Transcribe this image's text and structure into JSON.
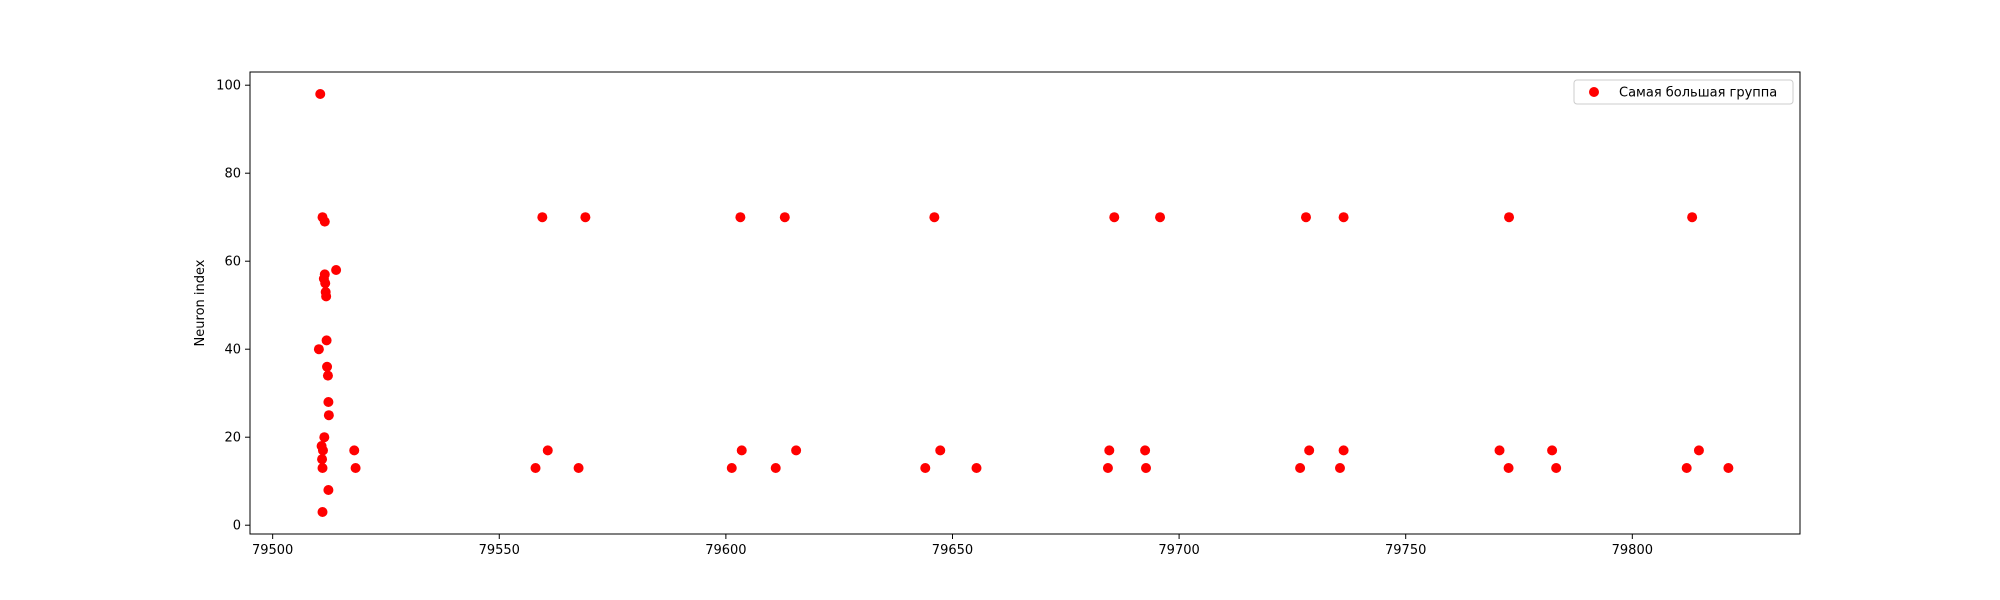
{
  "chart_data": {
    "type": "scatter",
    "title": "",
    "xlabel": "",
    "ylabel": "Neuron index",
    "xlim": [
      79495,
      79837
    ],
    "ylim": [
      -2,
      103
    ],
    "xticks": [
      79500,
      79550,
      79600,
      79650,
      79700,
      79750,
      79800
    ],
    "yticks": [
      0,
      20,
      40,
      60,
      80,
      100
    ],
    "grid": false,
    "legend_position": "top-right",
    "series": [
      {
        "name": "Самая большая группа",
        "color": "#ff0000",
        "points": [
          [
            79510.5,
            98
          ],
          [
            79511.0,
            70
          ],
          [
            79511.5,
            69
          ],
          [
            79510.2,
            40
          ],
          [
            79511.5,
            57
          ],
          [
            79511.3,
            56
          ],
          [
            79511.6,
            55
          ],
          [
            79511.7,
            53
          ],
          [
            79511.8,
            52
          ],
          [
            79514.0,
            58
          ],
          [
            79511.9,
            42
          ],
          [
            79512.0,
            36
          ],
          [
            79512.2,
            34
          ],
          [
            79512.3,
            28
          ],
          [
            79512.4,
            25
          ],
          [
            79511.4,
            20
          ],
          [
            79510.8,
            18
          ],
          [
            79511.1,
            17
          ],
          [
            79510.9,
            15
          ],
          [
            79511.0,
            13
          ],
          [
            79512.3,
            8
          ],
          [
            79511.0,
            3
          ],
          [
            79518.0,
            17
          ],
          [
            79518.3,
            13
          ],
          [
            79559.5,
            70
          ],
          [
            79569.0,
            70
          ],
          [
            79560.7,
            17
          ],
          [
            79558.0,
            13
          ],
          [
            79567.5,
            13
          ],
          [
            79603.2,
            70
          ],
          [
            79613.0,
            70
          ],
          [
            79603.5,
            17
          ],
          [
            79615.5,
            17
          ],
          [
            79601.3,
            13
          ],
          [
            79611.0,
            13
          ],
          [
            79646.0,
            70
          ],
          [
            79647.3,
            17
          ],
          [
            79644.0,
            13
          ],
          [
            79655.3,
            13
          ],
          [
            79685.7,
            70
          ],
          [
            79695.8,
            70
          ],
          [
            79684.6,
            17
          ],
          [
            79692.5,
            17
          ],
          [
            79684.3,
            13
          ],
          [
            79692.7,
            13
          ],
          [
            79728.0,
            70
          ],
          [
            79736.3,
            70
          ],
          [
            79728.7,
            17
          ],
          [
            79736.3,
            17
          ],
          [
            79726.7,
            13
          ],
          [
            79735.5,
            13
          ],
          [
            79772.8,
            70
          ],
          [
            79770.7,
            17
          ],
          [
            79782.3,
            17
          ],
          [
            79772.7,
            13
          ],
          [
            79783.2,
            13
          ],
          [
            79813.2,
            70
          ],
          [
            79814.7,
            17
          ],
          [
            79812.0,
            13
          ],
          [
            79821.2,
            13
          ]
        ]
      }
    ]
  }
}
